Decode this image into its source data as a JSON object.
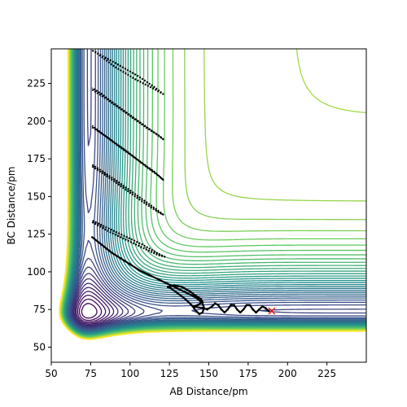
{
  "chart_data": {
    "type": "contour",
    "title": "",
    "xlabel": "AB Distance/pm",
    "ylabel": "BC Distance/pm",
    "xlim": [
      50,
      250
    ],
    "ylim": [
      40,
      248
    ],
    "xticks": [
      50,
      75,
      100,
      125,
      150,
      175,
      200,
      225
    ],
    "yticks": [
      50,
      75,
      100,
      125,
      150,
      175,
      200,
      225
    ],
    "grid": false,
    "legend": "none",
    "colormap": "viridis",
    "contour_levels": 45,
    "colors": {
      "trajectory": "#000000",
      "endpoint_marker": "#ff0000",
      "low": "#440154",
      "high": "#fde725"
    },
    "series": [
      {
        "type": "trajectory",
        "points": [
          [
            76,
            123
          ],
          [
            82,
            118
          ],
          [
            88,
            113
          ],
          [
            94,
            109
          ],
          [
            100,
            105
          ],
          [
            106,
            101
          ],
          [
            112,
            98
          ],
          [
            118,
            95
          ],
          [
            124,
            92
          ],
          [
            130,
            89
          ],
          [
            136,
            86
          ],
          [
            140,
            84
          ],
          [
            143,
            82
          ],
          [
            146,
            79
          ],
          [
            147,
            76
          ],
          [
            146,
            73
          ],
          [
            144,
            72
          ],
          [
            142,
            74
          ],
          [
            139,
            78
          ],
          [
            135,
            82
          ],
          [
            130,
            86
          ],
          [
            126,
            89
          ],
          [
            124,
            90
          ],
          [
            128,
            91
          ],
          [
            133,
            90
          ],
          [
            138,
            87
          ],
          [
            142,
            84
          ],
          [
            145,
            82
          ],
          [
            146,
            80
          ],
          [
            143,
            78
          ],
          [
            140,
            77
          ],
          [
            146,
            76
          ],
          [
            149,
            75
          ],
          [
            152,
            77
          ],
          [
            154,
            79
          ],
          [
            156,
            78
          ],
          [
            158,
            75
          ],
          [
            160,
            73
          ],
          [
            162,
            75
          ],
          [
            164,
            78
          ],
          [
            166,
            78
          ],
          [
            168,
            75
          ],
          [
            170,
            73
          ],
          [
            172,
            75
          ],
          [
            174,
            78
          ],
          [
            176,
            78
          ],
          [
            178,
            75
          ],
          [
            180,
            73
          ],
          [
            182,
            75
          ],
          [
            184,
            77
          ],
          [
            186,
            76
          ],
          [
            188,
            74
          ]
        ],
        "endpoint": [
          190,
          74
        ]
      },
      {
        "type": "oscillation_loops",
        "points": [
          [
            [
              76,
              247
            ],
            [
              90,
              239
            ],
            [
              105,
              230
            ],
            [
              115,
              223
            ],
            [
              121,
              218
            ],
            [
              116,
              221
            ],
            [
              103,
              228
            ],
            [
              89,
              237
            ],
            [
              78,
              246
            ]
          ],
          [
            [
              76,
              221
            ],
            [
              86,
              214
            ],
            [
              98,
              205
            ],
            [
              110,
              196
            ],
            [
              119,
              190
            ],
            [
              121,
              188
            ],
            [
              116,
              192
            ],
            [
              104,
              201
            ],
            [
              92,
              210
            ],
            [
              82,
              218
            ],
            [
              76,
              222
            ]
          ],
          [
            [
              76,
              196
            ],
            [
              86,
              189
            ],
            [
              98,
              180
            ],
            [
              110,
              170
            ],
            [
              119,
              163
            ],
            [
              121,
              161
            ],
            [
              116,
              166
            ],
            [
              104,
              175
            ],
            [
              92,
              184
            ],
            [
              82,
              192
            ],
            [
              76,
              197
            ]
          ],
          [
            [
              76,
              170
            ],
            [
              86,
              163
            ],
            [
              98,
              154
            ],
            [
              110,
              145
            ],
            [
              119,
              139
            ],
            [
              121,
              138
            ],
            [
              116,
              142
            ],
            [
              104,
              151
            ],
            [
              92,
              160
            ],
            [
              82,
              167
            ],
            [
              76,
              171
            ]
          ],
          [
            [
              76,
              133
            ],
            [
              88,
              126
            ],
            [
              100,
              120
            ],
            [
              110,
              115
            ],
            [
              118,
              111
            ],
            [
              122,
              110
            ],
            [
              118,
              112
            ],
            [
              108,
              118
            ],
            [
              96,
              124
            ],
            [
              84,
              130
            ],
            [
              76,
              134
            ]
          ]
        ]
      }
    ]
  }
}
